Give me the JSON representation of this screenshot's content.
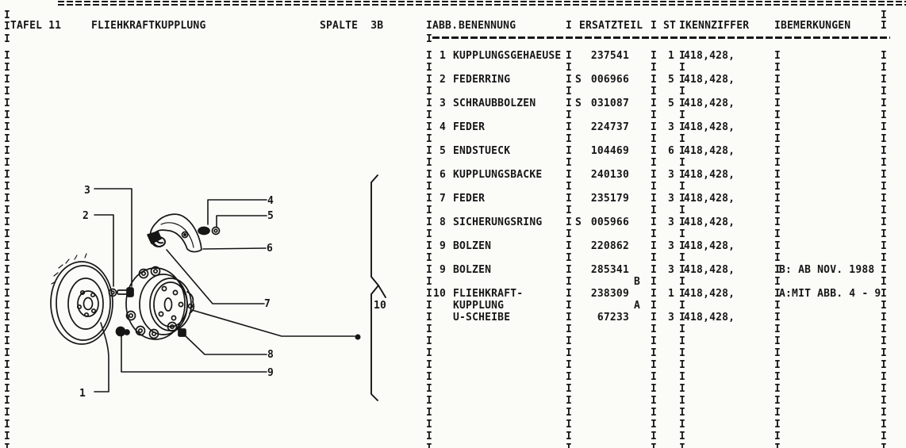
{
  "page": {
    "tafel_label": "TAFEL 11",
    "title": "FLIEHKRAFTKUPPLUNG",
    "spalte_label": "SPALTE  3B",
    "border_char": "I"
  },
  "table": {
    "headers": {
      "abb": "ABB.",
      "benennung": "BENENNUNG",
      "ersatzteil": "ERSATZTEIL",
      "st": "ST",
      "kennziffer": "KENNZIFFER",
      "bemerkungen": "BEMERKUNGEN"
    },
    "lines": [
      {
        "num": "1",
        "name": "KUPPLUNGSGEHAEUSE",
        "part": "237541",
        "st": "1",
        "kenn": "418,428,"
      },
      {},
      {
        "num": "2",
        "name": "FEDERRING",
        "s": "S",
        "part": "006966",
        "st": "5",
        "kenn": "418,428,"
      },
      {},
      {
        "num": "3",
        "name": "SCHRAUBBOLZEN",
        "s": "S",
        "part": "031087",
        "st": "5",
        "kenn": "418,428,"
      },
      {},
      {
        "num": "4",
        "name": "FEDER",
        "part": "224737",
        "st": "3",
        "kenn": "418,428,"
      },
      {},
      {
        "num": "5",
        "name": "ENDSTUECK",
        "part": "104469",
        "st": "6",
        "kenn": "418,428,"
      },
      {},
      {
        "num": "6",
        "name": "KUPPLUNGSBACKE",
        "part": "240130",
        "st": "3",
        "kenn": "418,428,"
      },
      {},
      {
        "num": "7",
        "name": "FEDER",
        "part": "235179",
        "st": "3",
        "kenn": "418,428,"
      },
      {},
      {
        "num": "8",
        "name": "SICHERUNGSRING",
        "s": "S",
        "part": "005966",
        "st": "3",
        "kenn": "418,428,"
      },
      {},
      {
        "num": "9",
        "name": "BOLZEN",
        "part": "220862",
        "st": "3",
        "kenn": "418,428,"
      },
      {},
      {
        "num": "9",
        "name": "BOLZEN",
        "part": "285341",
        "st": "3",
        "kenn": "418,428,",
        "bem": "B: AB NOV. 1988"
      },
      {
        "sfx": "B"
      },
      {
        "num": "10",
        "name": "FLIEHKRAFT-",
        "part": "238309",
        "st": "1",
        "kenn": "418,428,",
        "bem": "A:MIT ABB. 4 - 9"
      },
      {
        "name": "KUPPLUNG",
        "sfx": "A"
      },
      {
        "name": "U-SCHEIBE",
        "part": "67233",
        "st": "3",
        "kenn": "418,428,"
      },
      {},
      {},
      {},
      {},
      {},
      {},
      {},
      {},
      {},
      {},
      {}
    ]
  },
  "diagram": {
    "callouts": [
      "1",
      "2",
      "3",
      "4",
      "5",
      "6",
      "7",
      "8",
      "9",
      "10"
    ]
  }
}
